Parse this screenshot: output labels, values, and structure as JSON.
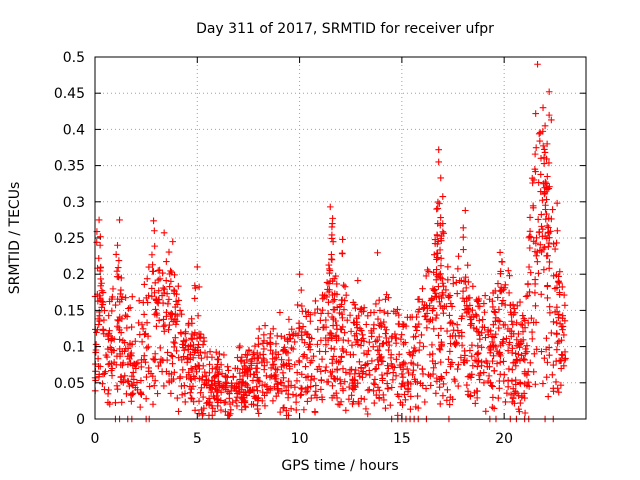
{
  "chart_data": {
    "type": "scatter",
    "title": "Day 311 of 2017, SRMTID for receiver ufpr",
    "xlabel": "GPS time / hours",
    "ylabel": "SRMTID / TECUs",
    "xlim": [
      0,
      24
    ],
    "ylim": [
      0,
      0.5
    ],
    "grid": true,
    "marker": "plus",
    "color": "#ff0000",
    "x_ticks": [
      {
        "value": 0,
        "label": "0"
      },
      {
        "value": 5,
        "label": "5"
      },
      {
        "value": 10,
        "label": "10"
      },
      {
        "value": 15,
        "label": "15"
      },
      {
        "value": 20,
        "label": "20"
      }
    ],
    "y_ticks": [
      {
        "value": 0,
        "label": "0"
      },
      {
        "value": 0.05,
        "label": "0.05"
      },
      {
        "value": 0.1,
        "label": "0.1"
      },
      {
        "value": 0.15,
        "label": "0.15"
      },
      {
        "value": 0.2,
        "label": "0.2"
      },
      {
        "value": 0.25,
        "label": "0.25"
      },
      {
        "value": 0.3,
        "label": "0.3"
      },
      {
        "value": 0.35,
        "label": "0.35"
      },
      {
        "value": 0.4,
        "label": "0.4"
      },
      {
        "value": 0.45,
        "label": "0.45"
      },
      {
        "value": 0.5,
        "label": "0.5"
      }
    ],
    "series": [
      {
        "name": "SRMTID",
        "profile": [
          {
            "x": 0.0,
            "y": 0.09
          },
          {
            "x": 0.3,
            "y": 0.12
          },
          {
            "x": 0.6,
            "y": 0.08
          },
          {
            "x": 1.0,
            "y": 0.11
          },
          {
            "x": 1.5,
            "y": 0.09
          },
          {
            "x": 2.0,
            "y": 0.08
          },
          {
            "x": 2.5,
            "y": 0.11
          },
          {
            "x": 3.0,
            "y": 0.12
          },
          {
            "x": 3.5,
            "y": 0.13
          },
          {
            "x": 4.0,
            "y": 0.11
          },
          {
            "x": 4.5,
            "y": 0.08
          },
          {
            "x": 5.0,
            "y": 0.07
          },
          {
            "x": 5.5,
            "y": 0.055
          },
          {
            "x": 6.0,
            "y": 0.05
          },
          {
            "x": 6.5,
            "y": 0.04
          },
          {
            "x": 7.0,
            "y": 0.04
          },
          {
            "x": 7.5,
            "y": 0.05
          },
          {
            "x": 8.0,
            "y": 0.06
          },
          {
            "x": 8.5,
            "y": 0.07
          },
          {
            "x": 9.0,
            "y": 0.065
          },
          {
            "x": 9.5,
            "y": 0.07
          },
          {
            "x": 10.0,
            "y": 0.08
          },
          {
            "x": 10.5,
            "y": 0.09
          },
          {
            "x": 11.0,
            "y": 0.1
          },
          {
            "x": 11.5,
            "y": 0.12
          },
          {
            "x": 12.0,
            "y": 0.1
          },
          {
            "x": 12.5,
            "y": 0.08
          },
          {
            "x": 13.0,
            "y": 0.09
          },
          {
            "x": 13.5,
            "y": 0.1
          },
          {
            "x": 14.0,
            "y": 0.09
          },
          {
            "x": 14.5,
            "y": 0.1
          },
          {
            "x": 15.0,
            "y": 0.07
          },
          {
            "x": 15.5,
            "y": 0.08
          },
          {
            "x": 16.0,
            "y": 0.11
          },
          {
            "x": 16.5,
            "y": 0.14
          },
          {
            "x": 17.0,
            "y": 0.13
          },
          {
            "x": 17.5,
            "y": 0.12
          },
          {
            "x": 18.0,
            "y": 0.12
          },
          {
            "x": 18.5,
            "y": 0.1
          },
          {
            "x": 19.0,
            "y": 0.1
          },
          {
            "x": 19.5,
            "y": 0.1
          },
          {
            "x": 20.0,
            "y": 0.12
          },
          {
            "x": 20.5,
            "y": 0.09
          },
          {
            "x": 21.0,
            "y": 0.08
          },
          {
            "x": 21.3,
            "y": 0.18
          },
          {
            "x": 21.7,
            "y": 0.28
          },
          {
            "x": 22.0,
            "y": 0.22
          },
          {
            "x": 22.5,
            "y": 0.15
          },
          {
            "x": 23.0,
            "y": 0.1
          }
        ],
        "peaks": [
          {
            "x": 0.2,
            "y": 0.275
          },
          {
            "x": 0.25,
            "y": 0.24
          },
          {
            "x": 1.2,
            "y": 0.275
          },
          {
            "x": 1.1,
            "y": 0.24
          },
          {
            "x": 2.9,
            "y": 0.26
          },
          {
            "x": 3.8,
            "y": 0.245
          },
          {
            "x": 5.0,
            "y": 0.21
          },
          {
            "x": 10.0,
            "y": 0.2
          },
          {
            "x": 11.5,
            "y": 0.293
          },
          {
            "x": 11.6,
            "y": 0.27
          },
          {
            "x": 12.1,
            "y": 0.248
          },
          {
            "x": 16.8,
            "y": 0.372
          },
          {
            "x": 16.8,
            "y": 0.355
          },
          {
            "x": 16.9,
            "y": 0.333
          },
          {
            "x": 16.7,
            "y": 0.29
          },
          {
            "x": 17.0,
            "y": 0.27
          },
          {
            "x": 18.1,
            "y": 0.288
          },
          {
            "x": 19.8,
            "y": 0.23
          },
          {
            "x": 21.9,
            "y": 0.43
          },
          {
            "x": 22.2,
            "y": 0.452
          },
          {
            "x": 22.0,
            "y": 0.405
          },
          {
            "x": 22.1,
            "y": 0.38
          },
          {
            "x": 21.8,
            "y": 0.36
          },
          {
            "x": 21.5,
            "y": 0.345
          },
          {
            "x": 22.1,
            "y": 0.32
          },
          {
            "x": 22.6,
            "y": 0.26
          }
        ],
        "zero_points": [
          1.0,
          1.2,
          1.6,
          1.8,
          2.5,
          2.65,
          14.5,
          14.8,
          15.0,
          15.2,
          15.4,
          15.6,
          15.8,
          16.2,
          17.3,
          19.3,
          19.6,
          20.3,
          20.6,
          21.0,
          21.2,
          22.0,
          22.4
        ]
      }
    ]
  }
}
